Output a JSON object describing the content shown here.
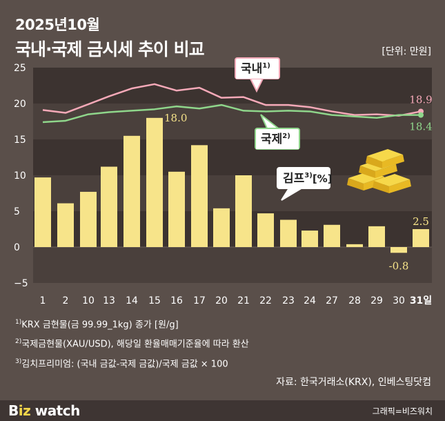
{
  "header": {
    "title_line1": "2025년10월",
    "title_line2": "국내·국제 금시세 추이 비교",
    "unit": "[단위: 만원]"
  },
  "chart_data": {
    "type": "bar",
    "x_labels": [
      "1",
      "2",
      "10",
      "13",
      "14",
      "15",
      "16",
      "17",
      "20",
      "21",
      "22",
      "23",
      "24",
      "27",
      "28",
      "29",
      "30",
      "31일"
    ],
    "ylim": [
      -5,
      25
    ],
    "yticks": [
      -5,
      0,
      5,
      10,
      15,
      20,
      25
    ],
    "series": [
      {
        "name": "국내",
        "type": "line",
        "color": "#f5a9b8",
        "values": [
          19.1,
          18.7,
          19.9,
          21.0,
          22.1,
          22.7,
          21.8,
          22.2,
          20.8,
          20.9,
          19.8,
          19.8,
          19.5,
          18.9,
          18.4,
          18.5,
          18.3,
          18.9
        ]
      },
      {
        "name": "국제",
        "type": "line",
        "color": "#8fd68b",
        "values": [
          17.4,
          17.6,
          18.5,
          18.8,
          19.0,
          19.2,
          19.6,
          19.3,
          19.8,
          19.0,
          18.9,
          19.0,
          18.9,
          18.4,
          18.2,
          18.0,
          18.4,
          18.4
        ]
      },
      {
        "name": "김프",
        "type": "bar",
        "color": "#f7e48a",
        "values": [
          9.7,
          6.1,
          7.7,
          11.2,
          15.5,
          18.0,
          10.5,
          14.2,
          5.4,
          10.0,
          4.7,
          3.8,
          2.3,
          3.1,
          0.4,
          2.9,
          -0.8,
          2.5
        ]
      }
    ],
    "annotations": [
      {
        "text": "18.0",
        "series": "김프",
        "index": 5
      },
      {
        "text": "-0.8",
        "series": "김프",
        "index": 16
      },
      {
        "text": "2.5",
        "series": "김프",
        "index": 17
      },
      {
        "text": "18.9",
        "series": "국내",
        "index": 17
      },
      {
        "text": "18.4",
        "series": "국제",
        "index": 17
      }
    ],
    "callouts": {
      "domestic": {
        "text": "국내",
        "sup": "1)"
      },
      "international": {
        "text": "국제",
        "sup": "2)"
      },
      "premium": {
        "text": "김프",
        "sup": "3)",
        "suffix": "[%]"
      }
    }
  },
  "notes": [
    {
      "sup": "1)",
      "text": "KRX 금현물(금 99.99_1kg) 종가 [원/g]"
    },
    {
      "sup": "2)",
      "text": "국제금현물(XAU/USD), 해당일 환율매매기준율에 따라 환산"
    },
    {
      "sup": "3)",
      "text": "김치프리미엄: (국내 금값-국제 금값)/국제 금값 × 100"
    }
  ],
  "source": "자료: 한국거래소(KRX), 인베스팅닷컴",
  "footer": {
    "logo_b": "B",
    "logo_z": "iz",
    "logo_rest": " watch",
    "credit": "그래픽=비즈워치"
  },
  "colors": {
    "background": "#5a4f4a",
    "band_dark": "#3c3330",
    "band_light": "#4a403c",
    "bar": "#f7e48a",
    "domestic": "#f5a9b8",
    "international": "#8fd68b"
  }
}
